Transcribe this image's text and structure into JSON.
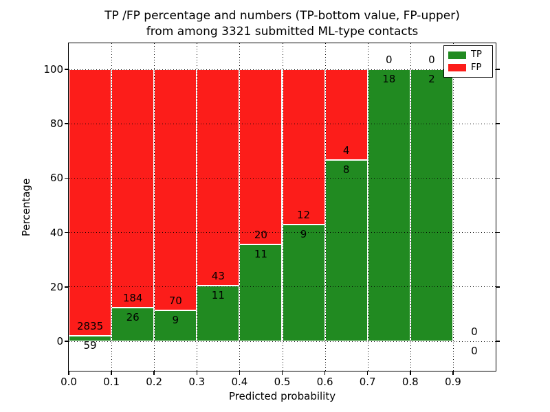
{
  "header": {
    "title_line1": "TP /FP percentage and numbers (TP-bottom value, FP-upper)",
    "title_line2": "from among 3321 submitted ML-type contacts"
  },
  "chart_data": {
    "type": "bar",
    "stacked": true,
    "title": "TP /FP percentage and numbers (TP-bottom value, FP-upper) from among 3321 submitted ML-type contacts",
    "xlabel": "Predicted probability",
    "ylabel": "Percentage",
    "total_contacts": 3321,
    "bin_starts": [
      0.0,
      0.1,
      0.2,
      0.3,
      0.4,
      0.5,
      0.6,
      0.7,
      0.8,
      0.9
    ],
    "bin_width": 0.1,
    "series": [
      {
        "name": "TP",
        "color": "#218a21",
        "counts": [
          59,
          26,
          9,
          11,
          11,
          9,
          8,
          18,
          2,
          0
        ]
      },
      {
        "name": "FP",
        "color": "#fc1d1a",
        "counts": [
          2835,
          184,
          70,
          43,
          20,
          12,
          4,
          0,
          0,
          0
        ]
      }
    ],
    "tp_percent_of_bin": [
      2.0,
      12.4,
      11.4,
      20.4,
      35.5,
      42.9,
      66.7,
      100.0,
      100.0,
      null
    ],
    "xticks": [
      "0.0",
      "0.1",
      "0.2",
      "0.3",
      "0.4",
      "0.5",
      "0.6",
      "0.7",
      "0.8",
      "0.9"
    ],
    "yticks": [
      "0",
      "20",
      "40",
      "60",
      "80",
      "100"
    ],
    "xlim": [
      0.0,
      1.0
    ],
    "ylim": [
      -11,
      110
    ],
    "grid": true,
    "grid_style": "dotted",
    "legend_position": "upper right",
    "legend_items": [
      {
        "label": "TP",
        "color": "#218a21"
      },
      {
        "label": "FP",
        "color": "#fc1d1a"
      }
    ]
  }
}
